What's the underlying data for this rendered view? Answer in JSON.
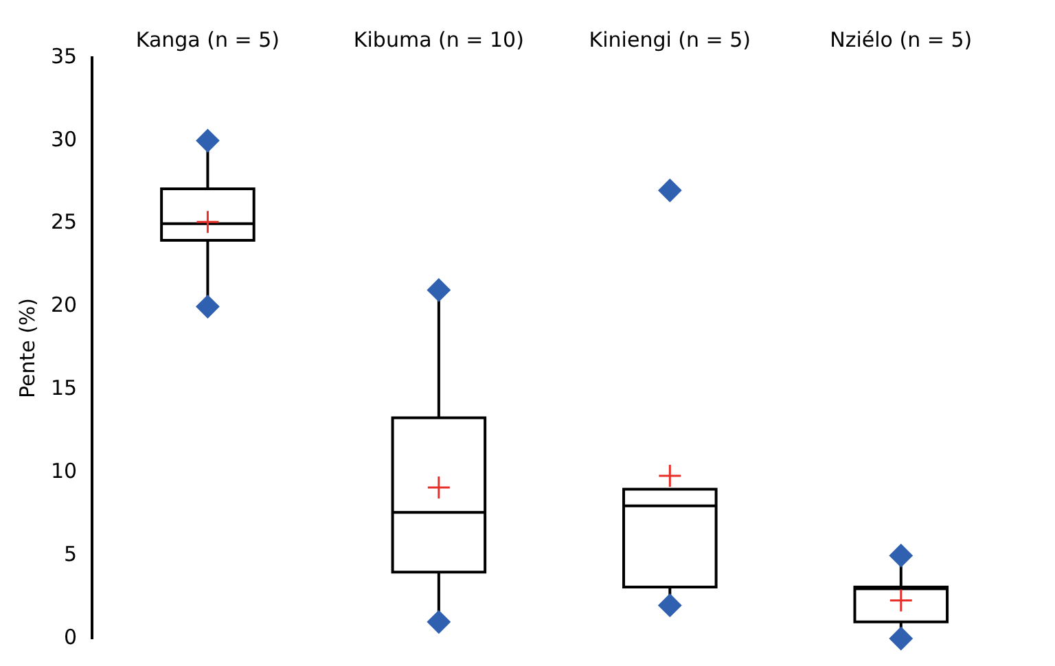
{
  "chart_data": {
    "type": "box",
    "ylabel": "Pente (%)",
    "categories": [
      "Kanga (n = 5)",
      "Kibuma (n = 10)",
      "Kiniengi (n = 5)",
      "Nziélo (n = 5)"
    ],
    "ylim": [
      0,
      35
    ],
    "yticks": [
      0,
      5,
      10,
      15,
      20,
      25,
      30,
      35
    ],
    "grid": false,
    "legend": false,
    "series": [
      {
        "color": "#000000",
        "boxes": [
          {
            "low": 20,
            "q1": 24,
            "median": 25,
            "q3": 27.1,
            "high": 30,
            "mean": 25.1
          },
          {
            "low": 1,
            "q1": 4,
            "median": 7.6,
            "q3": 13.3,
            "high": 21,
            "mean": 9.1
          },
          {
            "low": 2,
            "q1": 3.1,
            "median": 8,
            "q3": 9,
            "high": 9,
            "mean": 9.8
          },
          {
            "low": 0,
            "q1": 1,
            "median": 3,
            "q3": 3.1,
            "high": 5,
            "mean": 2.3
          }
        ]
      },
      {
        "type": "scatter",
        "color": "#3060b0",
        "marker": "diamond",
        "x": [
          "Kanga (n = 5)",
          "Kanga (n = 5)",
          "Kibuma (n = 10)",
          "Kibuma (n = 10)",
          "Kiniengi (n = 5)",
          "Kiniengi (n = 5)",
          "Nziélo (n = 5)",
          "Nziélo (n = 5)"
        ],
        "values": [
          30,
          20,
          21,
          1,
          27,
          2,
          5,
          0
        ]
      }
    ]
  }
}
